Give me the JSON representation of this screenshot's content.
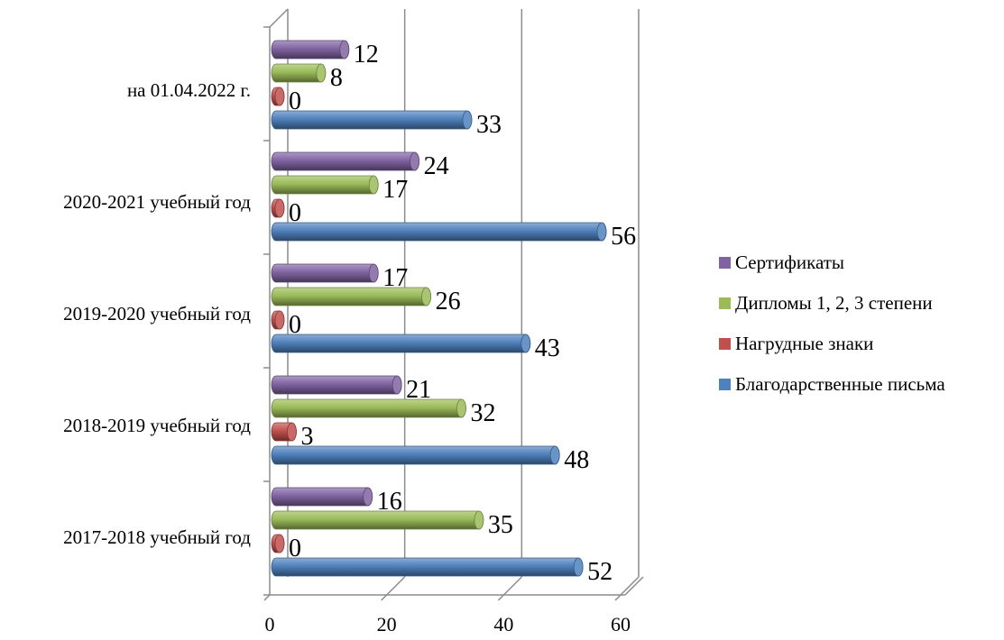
{
  "chart_data": {
    "type": "bar",
    "orientation": "horizontal",
    "categories": [
      "на 01.04.2022 г.",
      "2020-2021 учебный год",
      "2019-2020 учебный год",
      "2018-2019 учебный год",
      "2017-2018 учебный год"
    ],
    "series": [
      {
        "name": "Сертификаты",
        "color": "#8064A2",
        "values": [
          12,
          24,
          17,
          21,
          16
        ]
      },
      {
        "name": "Дипломы 1, 2, 3 степени",
        "color": "#9BBB59",
        "values": [
          8,
          17,
          26,
          32,
          35
        ]
      },
      {
        "name": "Нагрудные знаки",
        "color": "#C0504D",
        "values": [
          0,
          0,
          0,
          3,
          0
        ]
      },
      {
        "name": "Благодарственные письма",
        "color": "#4F81BD",
        "values": [
          33,
          56,
          43,
          48,
          52
        ]
      }
    ],
    "xlim": [
      0,
      60
    ],
    "x_ticks": [
      "0",
      "20",
      "40",
      "60"
    ],
    "grid": true,
    "legend_position": "right",
    "style": "3d-cylinder"
  }
}
